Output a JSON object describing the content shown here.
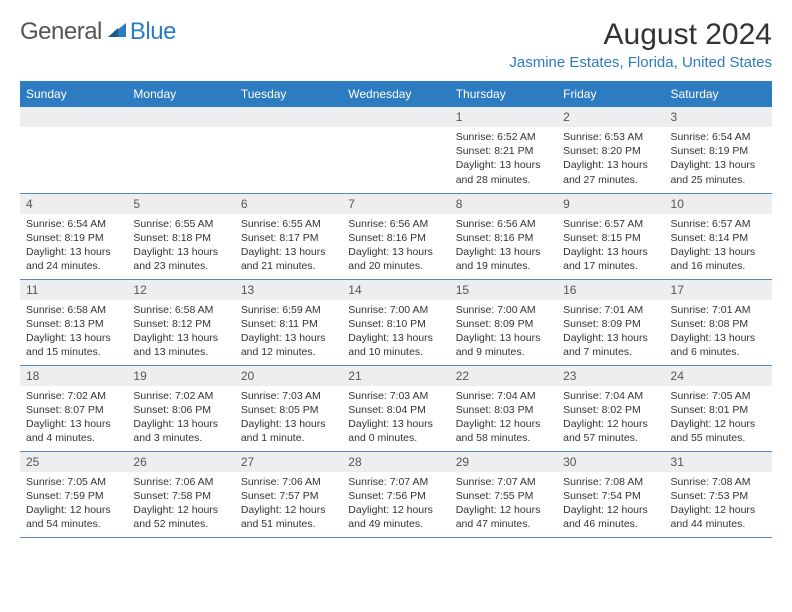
{
  "logo": {
    "word1": "General",
    "word2": "Blue"
  },
  "header": {
    "month_title": "August 2024",
    "location": "Jasmine Estates, Florida, United States"
  },
  "colors": {
    "brand_blue": "#2d7bc0",
    "strip_bg": "#eceef0",
    "rule": "#5a8bb8"
  },
  "weekday_labels": [
    "Sunday",
    "Monday",
    "Tuesday",
    "Wednesday",
    "Thursday",
    "Friday",
    "Saturday"
  ],
  "calendar": {
    "month": 8,
    "year": 2024,
    "weeks": [
      [
        null,
        null,
        null,
        null,
        {
          "date": "1",
          "sunrise": "Sunrise: 6:52 AM",
          "sunset": "Sunset: 8:21 PM",
          "daylight": "Daylight: 13 hours and 28 minutes."
        },
        {
          "date": "2",
          "sunrise": "Sunrise: 6:53 AM",
          "sunset": "Sunset: 8:20 PM",
          "daylight": "Daylight: 13 hours and 27 minutes."
        },
        {
          "date": "3",
          "sunrise": "Sunrise: 6:54 AM",
          "sunset": "Sunset: 8:19 PM",
          "daylight": "Daylight: 13 hours and 25 minutes."
        }
      ],
      [
        {
          "date": "4",
          "sunrise": "Sunrise: 6:54 AM",
          "sunset": "Sunset: 8:19 PM",
          "daylight": "Daylight: 13 hours and 24 minutes."
        },
        {
          "date": "5",
          "sunrise": "Sunrise: 6:55 AM",
          "sunset": "Sunset: 8:18 PM",
          "daylight": "Daylight: 13 hours and 23 minutes."
        },
        {
          "date": "6",
          "sunrise": "Sunrise: 6:55 AM",
          "sunset": "Sunset: 8:17 PM",
          "daylight": "Daylight: 13 hours and 21 minutes."
        },
        {
          "date": "7",
          "sunrise": "Sunrise: 6:56 AM",
          "sunset": "Sunset: 8:16 PM",
          "daylight": "Daylight: 13 hours and 20 minutes."
        },
        {
          "date": "8",
          "sunrise": "Sunrise: 6:56 AM",
          "sunset": "Sunset: 8:16 PM",
          "daylight": "Daylight: 13 hours and 19 minutes."
        },
        {
          "date": "9",
          "sunrise": "Sunrise: 6:57 AM",
          "sunset": "Sunset: 8:15 PM",
          "daylight": "Daylight: 13 hours and 17 minutes."
        },
        {
          "date": "10",
          "sunrise": "Sunrise: 6:57 AM",
          "sunset": "Sunset: 8:14 PM",
          "daylight": "Daylight: 13 hours and 16 minutes."
        }
      ],
      [
        {
          "date": "11",
          "sunrise": "Sunrise: 6:58 AM",
          "sunset": "Sunset: 8:13 PM",
          "daylight": "Daylight: 13 hours and 15 minutes."
        },
        {
          "date": "12",
          "sunrise": "Sunrise: 6:58 AM",
          "sunset": "Sunset: 8:12 PM",
          "daylight": "Daylight: 13 hours and 13 minutes."
        },
        {
          "date": "13",
          "sunrise": "Sunrise: 6:59 AM",
          "sunset": "Sunset: 8:11 PM",
          "daylight": "Daylight: 13 hours and 12 minutes."
        },
        {
          "date": "14",
          "sunrise": "Sunrise: 7:00 AM",
          "sunset": "Sunset: 8:10 PM",
          "daylight": "Daylight: 13 hours and 10 minutes."
        },
        {
          "date": "15",
          "sunrise": "Sunrise: 7:00 AM",
          "sunset": "Sunset: 8:09 PM",
          "daylight": "Daylight: 13 hours and 9 minutes."
        },
        {
          "date": "16",
          "sunrise": "Sunrise: 7:01 AM",
          "sunset": "Sunset: 8:09 PM",
          "daylight": "Daylight: 13 hours and 7 minutes."
        },
        {
          "date": "17",
          "sunrise": "Sunrise: 7:01 AM",
          "sunset": "Sunset: 8:08 PM",
          "daylight": "Daylight: 13 hours and 6 minutes."
        }
      ],
      [
        {
          "date": "18",
          "sunrise": "Sunrise: 7:02 AM",
          "sunset": "Sunset: 8:07 PM",
          "daylight": "Daylight: 13 hours and 4 minutes."
        },
        {
          "date": "19",
          "sunrise": "Sunrise: 7:02 AM",
          "sunset": "Sunset: 8:06 PM",
          "daylight": "Daylight: 13 hours and 3 minutes."
        },
        {
          "date": "20",
          "sunrise": "Sunrise: 7:03 AM",
          "sunset": "Sunset: 8:05 PM",
          "daylight": "Daylight: 13 hours and 1 minute."
        },
        {
          "date": "21",
          "sunrise": "Sunrise: 7:03 AM",
          "sunset": "Sunset: 8:04 PM",
          "daylight": "Daylight: 13 hours and 0 minutes."
        },
        {
          "date": "22",
          "sunrise": "Sunrise: 7:04 AM",
          "sunset": "Sunset: 8:03 PM",
          "daylight": "Daylight: 12 hours and 58 minutes."
        },
        {
          "date": "23",
          "sunrise": "Sunrise: 7:04 AM",
          "sunset": "Sunset: 8:02 PM",
          "daylight": "Daylight: 12 hours and 57 minutes."
        },
        {
          "date": "24",
          "sunrise": "Sunrise: 7:05 AM",
          "sunset": "Sunset: 8:01 PM",
          "daylight": "Daylight: 12 hours and 55 minutes."
        }
      ],
      [
        {
          "date": "25",
          "sunrise": "Sunrise: 7:05 AM",
          "sunset": "Sunset: 7:59 PM",
          "daylight": "Daylight: 12 hours and 54 minutes."
        },
        {
          "date": "26",
          "sunrise": "Sunrise: 7:06 AM",
          "sunset": "Sunset: 7:58 PM",
          "daylight": "Daylight: 12 hours and 52 minutes."
        },
        {
          "date": "27",
          "sunrise": "Sunrise: 7:06 AM",
          "sunset": "Sunset: 7:57 PM",
          "daylight": "Daylight: 12 hours and 51 minutes."
        },
        {
          "date": "28",
          "sunrise": "Sunrise: 7:07 AM",
          "sunset": "Sunset: 7:56 PM",
          "daylight": "Daylight: 12 hours and 49 minutes."
        },
        {
          "date": "29",
          "sunrise": "Sunrise: 7:07 AM",
          "sunset": "Sunset: 7:55 PM",
          "daylight": "Daylight: 12 hours and 47 minutes."
        },
        {
          "date": "30",
          "sunrise": "Sunrise: 7:08 AM",
          "sunset": "Sunset: 7:54 PM",
          "daylight": "Daylight: 12 hours and 46 minutes."
        },
        {
          "date": "31",
          "sunrise": "Sunrise: 7:08 AM",
          "sunset": "Sunset: 7:53 PM",
          "daylight": "Daylight: 12 hours and 44 minutes."
        }
      ]
    ]
  }
}
